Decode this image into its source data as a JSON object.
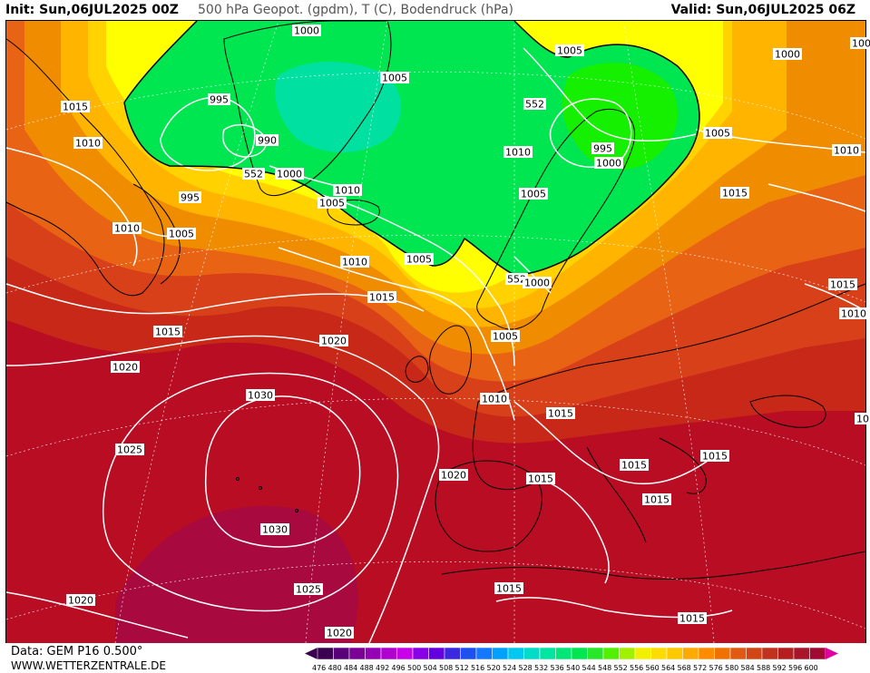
{
  "header": {
    "init": "Init: Sun,06JUL2025 00Z",
    "title": "500 hPa Geopot. (gpdm), T (C), Bodendruck (hPa)",
    "valid": "Valid: Sun,06JUL2025 06Z"
  },
  "footer": {
    "data_source": "Data: GEM P16 0.500°",
    "website": "WWW.WETTERZENTRALE.DE"
  },
  "legend": {
    "values": [
      "476",
      "480",
      "484",
      "488",
      "492",
      "496",
      "500",
      "504",
      "508",
      "512",
      "516",
      "520",
      "524",
      "528",
      "532",
      "536",
      "540",
      "544",
      "548",
      "552",
      "556",
      "560",
      "564",
      "568",
      "572",
      "576",
      "580",
      "584",
      "588",
      "592",
      "596",
      "600"
    ],
    "colors": [
      "#3c0050",
      "#5a007a",
      "#7a0096",
      "#9400b4",
      "#b000d0",
      "#c800e8",
      "#8a00e6",
      "#6400e0",
      "#3c28e0",
      "#1e50f0",
      "#1478ff",
      "#00a0ff",
      "#00c8f0",
      "#00dcc8",
      "#00e6a0",
      "#00e678",
      "#00e650",
      "#28e628",
      "#50f000",
      "#a0f000",
      "#f0f000",
      "#ffdc00",
      "#ffc800",
      "#ffaa00",
      "#ff8c00",
      "#f07000",
      "#e05a14",
      "#d04614",
      "#c0321e",
      "#b41e1e",
      "#a8142a",
      "#a00a32"
    ],
    "arrow_left_color": "#3c0050",
    "arrow_right_color": "#e000a0"
  },
  "map": {
    "colors": {
      "deep_red": "#b80d22",
      "magenta_red": "#a80a40",
      "red": "#c82818",
      "red_orange": "#d8401a",
      "orange": "#e86414",
      "light_orange": "#f08c00",
      "gold": "#ffb400",
      "yellow_orange": "#ffd200",
      "yellow": "#ffff00",
      "green": "#00e650",
      "bright_green": "#14f000",
      "cyan_green": "#00e0a0",
      "isobar": "#ffffff",
      "coast": "#000000"
    },
    "isobar_labels": [
      {
        "text": "1000"
      },
      {
        "text": "1005"
      },
      {
        "text": "1000"
      },
      {
        "text": "100"
      },
      {
        "text": "1015"
      },
      {
        "text": "995"
      },
      {
        "text": "1005"
      },
      {
        "text": "552"
      },
      {
        "text": "1010"
      },
      {
        "text": "990"
      },
      {
        "text": "1010"
      },
      {
        "text": "995"
      },
      {
        "text": "1005"
      },
      {
        "text": "1010"
      },
      {
        "text": "552"
      },
      {
        "text": "1000"
      },
      {
        "text": "1000"
      },
      {
        "text": "1010"
      },
      {
        "text": "995"
      },
      {
        "text": "1005"
      },
      {
        "text": "1005"
      },
      {
        "text": "1015"
      },
      {
        "text": "1010"
      },
      {
        "text": "1005"
      },
      {
        "text": "1010"
      },
      {
        "text": "1005"
      },
      {
        "text": "552"
      },
      {
        "text": "1000"
      },
      {
        "text": "1015"
      },
      {
        "text": "1015"
      },
      {
        "text": "1010"
      },
      {
        "text": "1015"
      },
      {
        "text": "1020"
      },
      {
        "text": "1005"
      },
      {
        "text": "1020"
      },
      {
        "text": "1010"
      },
      {
        "text": "1030"
      },
      {
        "text": "1015"
      },
      {
        "text": "1025"
      },
      {
        "text": "1015"
      },
      {
        "text": "1020"
      },
      {
        "text": "1015"
      },
      {
        "text": "1015"
      },
      {
        "text": "1015"
      },
      {
        "text": "1030"
      },
      {
        "text": "1015"
      },
      {
        "text": "1020"
      },
      {
        "text": "1025"
      },
      {
        "text": "1015"
      },
      {
        "text": "1020"
      },
      {
        "text": "10"
      }
    ]
  }
}
